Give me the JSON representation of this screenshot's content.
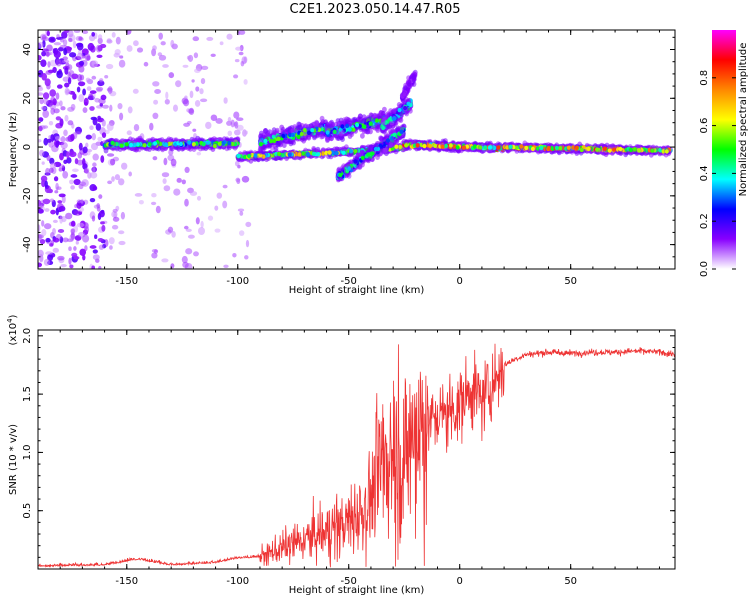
{
  "title": "C2E1.2023.050.14.47.R05",
  "chart_data": [
    {
      "type": "heatmap",
      "xlabel": "Height of straight line (km)",
      "ylabel": "Frequency (Hz)",
      "xlim": [
        -190,
        97
      ],
      "ylim": [
        -50,
        48
      ],
      "x_ticks": [
        -150,
        -100,
        -50,
        0,
        50
      ],
      "y_ticks": [
        -40,
        -20,
        0,
        20,
        40
      ],
      "colorbar": {
        "label": "Normalized spectral amplitude",
        "range": [
          0,
          1
        ],
        "ticks": [
          "0.0",
          "0.2",
          "0.4",
          "0.6",
          "0.8"
        ],
        "colormap": [
          "#ffffff",
          "#8800ff",
          "#0000ff",
          "#00ffff",
          "#00ff00",
          "#ffff00",
          "#ff8800",
          "#ff0000",
          "#ff00ff"
        ]
      },
      "features": {
        "noise_region_x": [
          -190,
          -95
        ],
        "main_band": {
          "x": [
            -160,
            95
          ],
          "freq": 0
        },
        "upper_branch": {
          "x": [
            -90,
            -22
          ],
          "freq": [
            0,
            18
          ]
        },
        "lower_branch": {
          "x": [
            -55,
            -25
          ],
          "freq": [
            -12,
            3
          ]
        },
        "upper_spike": {
          "x": [
            -26,
            -20
          ],
          "freq": [
            20,
            30
          ]
        }
      }
    },
    {
      "type": "line",
      "xlabel": "Height of straight line (km)",
      "ylabel": "SNR (10 * v/v)",
      "y_multiplier": "(x10",
      "y_multiplier_exp": "4",
      "xlim": [
        -190,
        97
      ],
      "ylim": [
        0,
        2.05
      ],
      "x_ticks": [
        -150,
        -100,
        -50,
        0,
        50
      ],
      "y_ticks": [
        "0.5",
        "1.0",
        "1.5",
        "2.0"
      ],
      "color": "#ee3333",
      "series": [
        {
          "x": [
            -190,
            -160,
            -145,
            -130,
            -110,
            -100,
            -90,
            -80,
            -70,
            -60,
            -50,
            -40,
            -35,
            -30,
            -25,
            -20,
            -15,
            -10,
            -5,
            0,
            5,
            10,
            15,
            20,
            25,
            30,
            40,
            50,
            60,
            70,
            80,
            90,
            97
          ],
          "values": [
            0.02,
            0.03,
            0.08,
            0.03,
            0.05,
            0.09,
            0.1,
            0.18,
            0.25,
            0.32,
            0.4,
            0.6,
            0.9,
            1.05,
            0.9,
            1.2,
            1.25,
            1.3,
            1.35,
            1.4,
            1.55,
            1.45,
            1.6,
            1.75,
            1.8,
            1.84,
            1.86,
            1.85,
            1.86,
            1.86,
            1.87,
            1.86,
            1.84
          ]
        }
      ]
    }
  ]
}
